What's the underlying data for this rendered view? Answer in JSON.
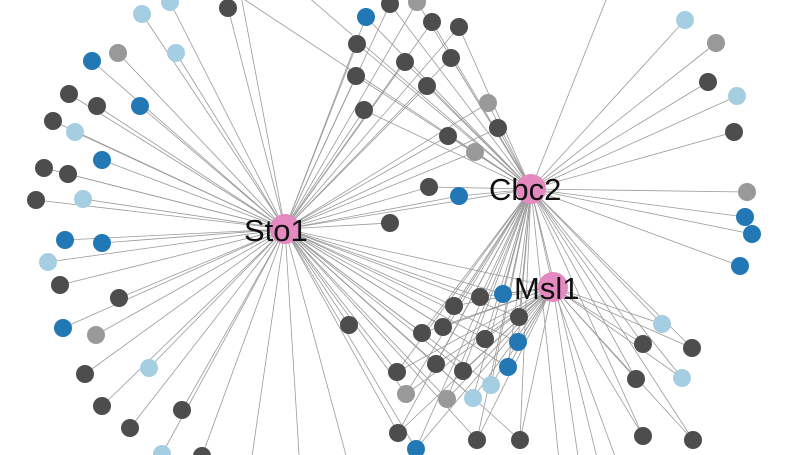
{
  "colors": {
    "hub": "#e48ac0",
    "dark": "#4d4d4d",
    "gray": "#999999",
    "blue": "#2178b4",
    "light": "#a6cee3",
    "edge": "#9a9a9a"
  },
  "hubs": [
    {
      "id": "sto1",
      "label": "Sto1"
    },
    {
      "id": "cbc2",
      "label": "Cbc2"
    },
    {
      "id": "msl1",
      "label": "Msl1"
    }
  ]
}
